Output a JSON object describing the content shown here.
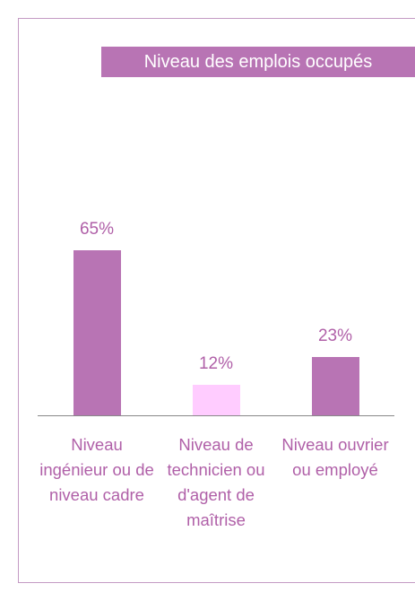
{
  "chart_data": {
    "type": "bar",
    "title": "Niveau des emplois occupés",
    "categories": [
      "Niveau ingénieur ou de niveau cadre",
      "Niveau de technicien ou d'agent de maîtrise",
      "Niveau ouvrier ou employé"
    ],
    "values": [
      65,
      12,
      23
    ],
    "value_labels": [
      "65%",
      "12%",
      "23%"
    ],
    "colors": [
      "#b874b4",
      "#ffccff",
      "#b874b4"
    ]
  }
}
